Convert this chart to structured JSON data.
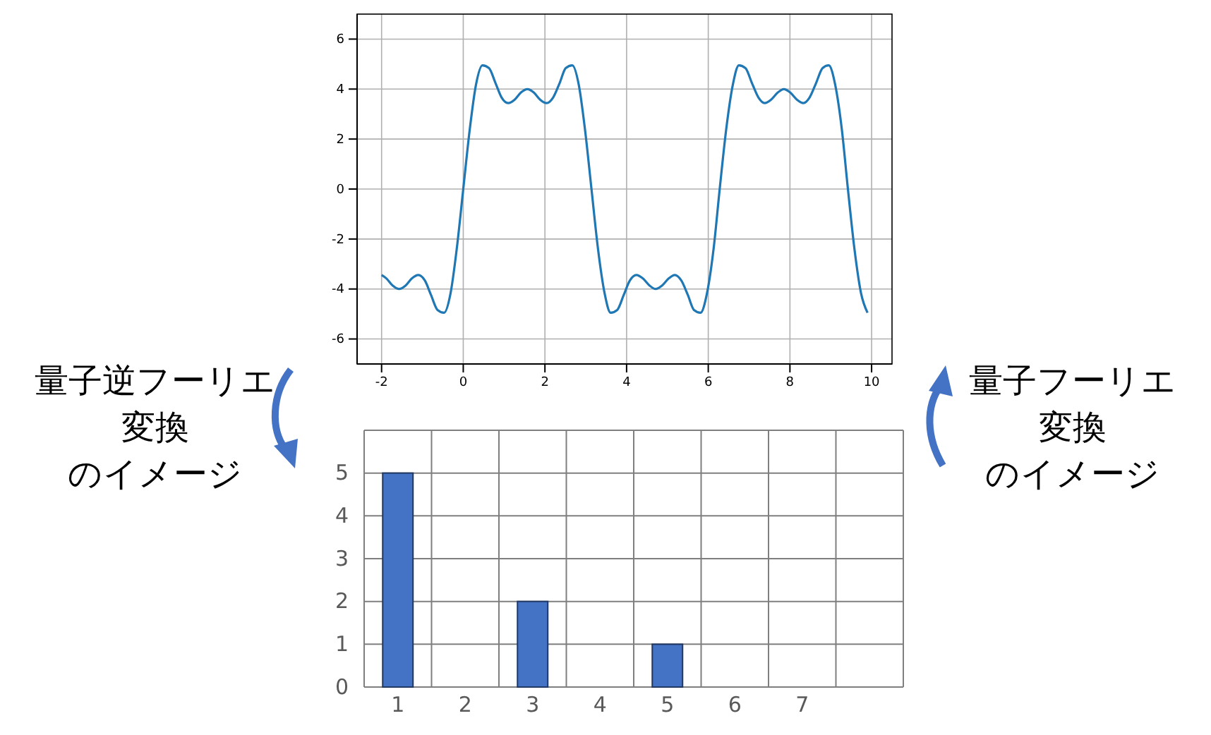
{
  "chart_data": [
    {
      "type": "line",
      "x": [
        -2,
        -1.88,
        -1.73,
        -1.57,
        -1.41,
        -1.26,
        -1.1,
        -0.94,
        -0.79,
        -0.63,
        -0.47,
        -0.31,
        -0.16,
        0,
        0.16,
        0.31,
        0.47,
        0.63,
        0.79,
        0.94,
        1.1,
        1.26,
        1.41,
        1.57,
        1.73,
        1.88,
        2.04,
        2.2,
        2.36,
        2.51,
        2.67,
        2.83,
        2.98,
        3.14,
        3.3,
        3.46,
        3.61,
        3.77,
        3.93,
        4.08,
        4.24,
        4.4,
        4.56,
        4.71,
        4.87,
        5.03,
        5.18,
        5.34,
        5.5,
        5.65,
        5.81,
        5.97,
        6.13,
        6.28,
        6.44,
        6.6,
        6.75,
        6.91,
        7.07,
        7.23,
        7.38,
        7.54,
        7.7,
        7.85,
        8.01,
        8.17,
        8.33,
        8.48,
        8.64,
        8.8,
        8.95,
        9.11,
        9.27,
        9.42,
        9.58,
        9.74,
        9.9
      ],
      "series": [
        {
          "color": "#1f77b4",
          "values": [
            -3.44,
            -3.58,
            -3.86,
            -4.0,
            -3.86,
            -3.58,
            -3.44,
            -3.66,
            -4.24,
            -4.84,
            -4.95,
            -4.16,
            -2.4,
            0,
            2.4,
            4.16,
            4.95,
            4.84,
            4.24,
            3.66,
            3.44,
            3.58,
            3.86,
            4.0,
            3.86,
            3.58,
            3.44,
            3.66,
            4.24,
            4.84,
            4.95,
            4.16,
            2.4,
            0,
            -2.4,
            -4.16,
            -4.95,
            -4.84,
            -4.24,
            -3.66,
            -3.44,
            -3.58,
            -3.86,
            -4.0,
            -3.86,
            -3.58,
            -3.44,
            -3.66,
            -4.24,
            -4.84,
            -4.95,
            -4.16,
            -2.4,
            0,
            2.4,
            4.16,
            4.95,
            4.84,
            4.24,
            3.66,
            3.44,
            3.58,
            3.86,
            4.0,
            3.86,
            3.58,
            3.44,
            3.66,
            4.24,
            4.84,
            4.95,
            4.16,
            2.4,
            0,
            -2.4,
            -4.16,
            -4.95
          ]
        }
      ],
      "xlim": [
        -2.6,
        10.5
      ],
      "xticks": [
        -2,
        0,
        2,
        4,
        6,
        8,
        10
      ],
      "ylim": [
        -7,
        7
      ],
      "yticks": [
        -6,
        -4,
        -2,
        0,
        2,
        4,
        6
      ],
      "grid": true
    },
    {
      "type": "bar",
      "categories": [
        "1",
        "2",
        "3",
        "4",
        "5",
        "6",
        "7",
        null
      ],
      "values": [
        5,
        0,
        2,
        0,
        1,
        0,
        0,
        0
      ],
      "color": "#4472c4",
      "ylim": [
        0,
        6
      ],
      "yticks": [
        0,
        1,
        2,
        3,
        4,
        5,
        {
          "value": 6,
          "label": null
        }
      ],
      "grid": true,
      "annotations": [
        "量子逆フーリエ変換のイメージ",
        "量子フーリエ変換のイメージ"
      ]
    }
  ]
}
